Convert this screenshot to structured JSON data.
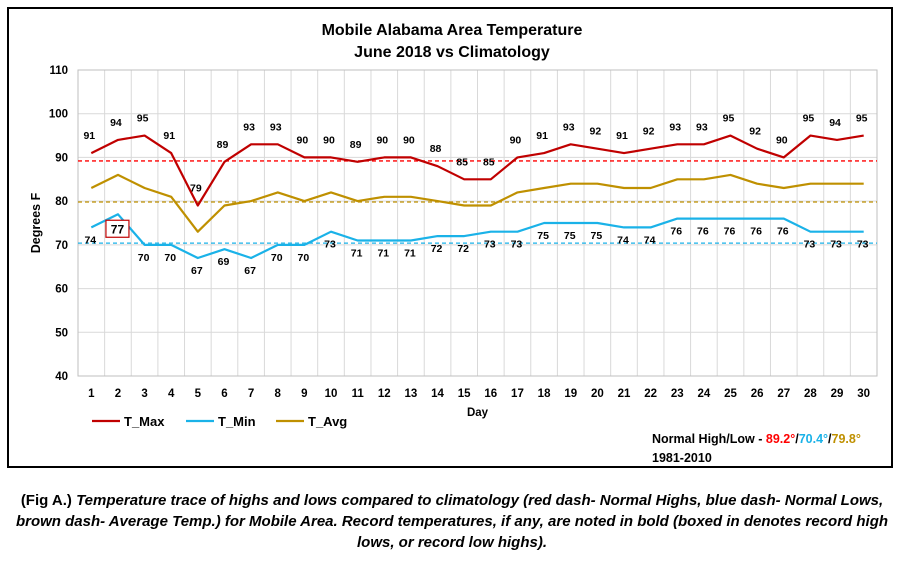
{
  "chart_data": {
    "type": "line",
    "title": "Mobile Alabama Area Temperature",
    "subtitle": "June 2018 vs Climatology",
    "xlabel": "Day",
    "ylabel": "Degrees F",
    "ylim": [
      40,
      110
    ],
    "yticks": [
      40,
      50,
      60,
      70,
      80,
      90,
      100,
      110
    ],
    "x": [
      1,
      2,
      3,
      4,
      5,
      6,
      7,
      8,
      9,
      10,
      11,
      12,
      13,
      14,
      15,
      16,
      17,
      18,
      19,
      20,
      21,
      22,
      23,
      24,
      25,
      26,
      27,
      28,
      29,
      30
    ],
    "grid": true,
    "legend": "bottom-left",
    "series": [
      {
        "name": "T_Max",
        "color": "#c00000",
        "values": [
          91,
          94,
          95,
          91,
          79,
          89,
          93,
          93,
          90,
          90,
          89,
          90,
          90,
          88,
          85,
          85,
          90,
          91,
          93,
          92,
          91,
          92,
          93,
          93,
          95,
          92,
          90,
          95,
          94,
          95
        ]
      },
      {
        "name": "T_Min",
        "color": "#1ab2e8",
        "values": [
          74,
          77,
          70,
          70,
          67,
          69,
          67,
          70,
          70,
          73,
          71,
          71,
          71,
          72,
          72,
          73,
          73,
          75,
          75,
          75,
          74,
          74,
          76,
          76,
          76,
          76,
          76,
          73,
          73,
          73
        ]
      },
      {
        "name": "T_Avg",
        "color": "#bf9000",
        "values": [
          83,
          86,
          83,
          81,
          73,
          79,
          80,
          82,
          80,
          82,
          80,
          81,
          81,
          80,
          79,
          79,
          82,
          83,
          84,
          84,
          83,
          83,
          85,
          85,
          86,
          84,
          83,
          84,
          84,
          84
        ]
      }
    ],
    "normals": [
      {
        "label": "Normal High",
        "value": 89.2,
        "color": "#ff0000",
        "text": "89.2°"
      },
      {
        "label": "Normal Low",
        "value": 70.4,
        "color": "#1ab2e8",
        "text": "70.4°"
      },
      {
        "label": "Average",
        "value": 79.8,
        "color": "#bf9000",
        "text": "79.8°"
      }
    ],
    "record_box": {
      "series": "T_Min",
      "day": 2,
      "value": 77
    }
  },
  "normals_text": {
    "prefix": "Normal High/Low - ",
    "sep": "/"
  },
  "period_text": "1981-2010",
  "caption": {
    "lead": "(Fig A.)",
    "body": " Temperature trace of highs and lows compared to climatology (red dash- Normal Highs, blue dash- Normal Lows, brown dash- Average Temp.) for Mobile Area. Record temperatures, if any, are noted in bold (boxed in denotes record high lows, or record low highs)."
  }
}
